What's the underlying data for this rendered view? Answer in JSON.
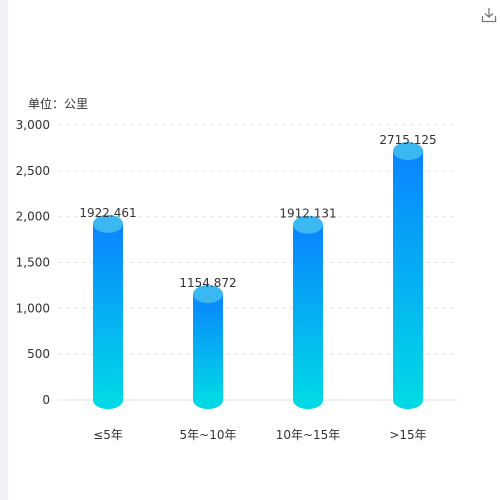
{
  "unit_label": "单位：公里",
  "toolbar": {
    "download_icon": "download-icon"
  },
  "colors": {
    "bar_top": "#0a84ff",
    "bar_bottom": "#00d8e6",
    "cap": "#3bb8f2",
    "grid": "#e3e6ec"
  },
  "chart_data": {
    "type": "bar",
    "categories": [
      "≤5年",
      "5年~10年",
      "10年~15年",
      ">15年"
    ],
    "values": [
      1922.461,
      1154.872,
      1912.131,
      2715.125
    ],
    "value_labels": [
      "1922.461",
      "1154.872",
      "1912.131",
      "2715.125"
    ],
    "ylim": [
      0,
      3000
    ],
    "yticks": [
      "0",
      "500",
      "1,000",
      "1,500",
      "2,000",
      "2,500",
      "3,000"
    ],
    "grid": true
  }
}
